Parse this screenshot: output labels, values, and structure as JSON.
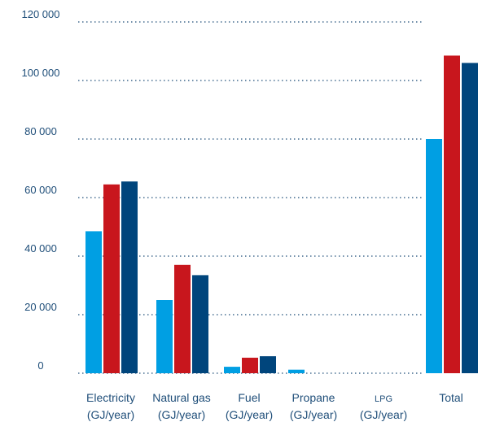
{
  "chart_data": {
    "type": "bar",
    "title": "",
    "xlabel": "",
    "ylabel": "",
    "ylim": [
      0,
      120000
    ],
    "yticks": [
      0,
      20000,
      40000,
      60000,
      80000,
      100000,
      120000
    ],
    "ytick_labels": [
      "0",
      "20 000",
      "40 000",
      "60 000",
      "80 000",
      "100 000",
      "120 000"
    ],
    "categories": [
      {
        "label": "Electricity",
        "unit": "(GJ/year)"
      },
      {
        "label": "Natural gas",
        "unit": "(GJ/year)"
      },
      {
        "label": "Fuel",
        "unit": "(GJ/year)"
      },
      {
        "label": "Propane",
        "unit": "(GJ/year)"
      },
      {
        "label": "LPG",
        "unit": "(GJ/year)"
      },
      {
        "label": "Total",
        "unit": ""
      }
    ],
    "series": [
      {
        "color": "#009fe3",
        "values": [
          48500,
          25000,
          2200,
          1200,
          0,
          80000
        ]
      },
      {
        "color": "#c8161d",
        "values": [
          64500,
          37000,
          5300,
          0,
          0,
          108500
        ]
      },
      {
        "color": "#00457c",
        "values": [
          65500,
          33500,
          5800,
          0,
          0,
          106000
        ]
      }
    ],
    "grid": true,
    "legend": "none"
  }
}
